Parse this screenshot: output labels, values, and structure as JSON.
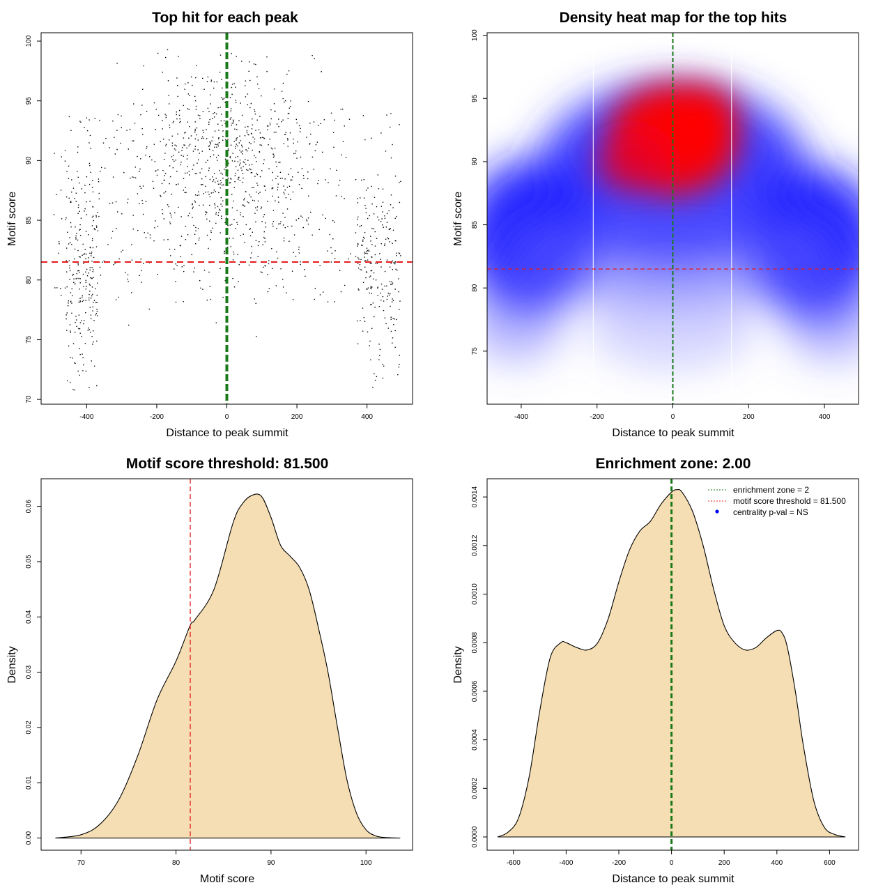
{
  "chart_data": [
    {
      "id": "scatter",
      "type": "scatter",
      "title": "Top hit for each peak",
      "xlabel": "Distance to peak summit",
      "ylabel": "Motif score",
      "xlim": [
        -530,
        530
      ],
      "ylim": [
        69.6,
        100.7
      ],
      "xticks": [
        -400,
        -200,
        0,
        200,
        400
      ],
      "yticks": [
        70,
        75,
        80,
        85,
        90,
        95,
        100
      ],
      "point_count": 1500,
      "threshold": 81.5,
      "threshold_color": "#e41a1c",
      "center": 0,
      "center_color": "#1a7a1a",
      "point_color": "#000000"
    },
    {
      "id": "heatmap",
      "type": "heatmap",
      "title": "Density heat map for the top hits",
      "xlabel": "Distance to peak summit",
      "ylabel": "Motif score",
      "xlim": [
        -490,
        490
      ],
      "ylim": [
        70.8,
        100.2
      ],
      "xticks": [
        -400,
        -200,
        0,
        200,
        400
      ],
      "yticks": [
        75,
        80,
        85,
        90,
        95,
        100
      ],
      "threshold": 81.5,
      "center": 0,
      "zone_lines": [
        -210,
        155
      ],
      "low_color": "#ffffff",
      "mid_color": "#0000ff",
      "high_color": "#ff0000"
    },
    {
      "id": "score_density",
      "type": "area",
      "title": "Motif score threshold: 81.500",
      "xlabel": "Motif score",
      "ylabel": "Density",
      "xlim": [
        65.8,
        104.9
      ],
      "ylim": [
        -0.0022,
        0.065
      ],
      "xticks": [
        70,
        80,
        90,
        100
      ],
      "yticks": [
        "0.00",
        "0.01",
        "0.02",
        "0.03",
        "0.04",
        "0.05",
        "0.06"
      ],
      "x": [
        67.3,
        70,
        72,
        74,
        76,
        78,
        80,
        81.5,
        82,
        84,
        86,
        87,
        88,
        89,
        90,
        91,
        92,
        93,
        94,
        95,
        96,
        97,
        98,
        99,
        100,
        101,
        102,
        103.6
      ],
      "y": [
        0,
        0.0006,
        0.0025,
        0.007,
        0.015,
        0.025,
        0.032,
        0.0385,
        0.0395,
        0.045,
        0.057,
        0.0605,
        0.062,
        0.0618,
        0.058,
        0.053,
        0.051,
        0.049,
        0.045,
        0.038,
        0.03,
        0.02,
        0.0105,
        0.0045,
        0.0015,
        0.0004,
        0.0001,
        0
      ],
      "threshold": 81.5,
      "fill_color": "#f5deb3",
      "threshold_color": "#e41a1c"
    },
    {
      "id": "distance_density",
      "type": "area",
      "title": "Enrichment zone: 2.00",
      "xlabel": "Distance to peak summit",
      "ylabel": "Density",
      "xlim": [
        -700,
        710
      ],
      "ylim": [
        -5.45e-05,
        0.001475
      ],
      "xticks": [
        -600,
        -400,
        -200,
        0,
        200,
        400,
        600
      ],
      "yticks": [
        "0.0000",
        "0.0002",
        "0.0004",
        "0.0006",
        "0.0008",
        "0.0010",
        "0.0012",
        "0.0014"
      ],
      "x": [
        -660,
        -620,
        -580,
        -540,
        -500,
        -460,
        -420,
        -400,
        -360,
        -320,
        -280,
        -240,
        -200,
        -160,
        -120,
        -80,
        -40,
        0,
        20,
        40,
        80,
        120,
        160,
        200,
        240,
        280,
        320,
        360,
        400,
        420,
        440,
        470,
        500,
        540,
        580,
        620,
        660
      ],
      "y": [
        0,
        2e-05,
        8e-05,
        0.00025,
        0.00052,
        0.00074,
        0.0008,
        0.0008,
        0.00078,
        0.00077,
        0.0008,
        0.0009,
        0.00105,
        0.00118,
        0.00126,
        0.0013,
        0.00137,
        0.00142,
        0.00143,
        0.00142,
        0.00134,
        0.0012,
        0.00102,
        0.00087,
        0.0008,
        0.00077,
        0.00078,
        0.00082,
        0.00085,
        0.00084,
        0.00078,
        0.0006,
        0.00038,
        0.00015,
        4e-05,
        1e-05,
        0
      ],
      "center": 0,
      "fill_color": "#f5deb3",
      "center_color": "#1a7a1a",
      "legend": [
        {
          "label": "enrichment zone = 2",
          "color": "#1a7a1a",
          "style": "dotted-line"
        },
        {
          "label": "motif score threshold = 81.500",
          "color": "#e41a1c",
          "style": "dotted-line"
        },
        {
          "label": "centrality p-val = NS",
          "color": "#0000ff",
          "style": "point"
        }
      ]
    }
  ]
}
